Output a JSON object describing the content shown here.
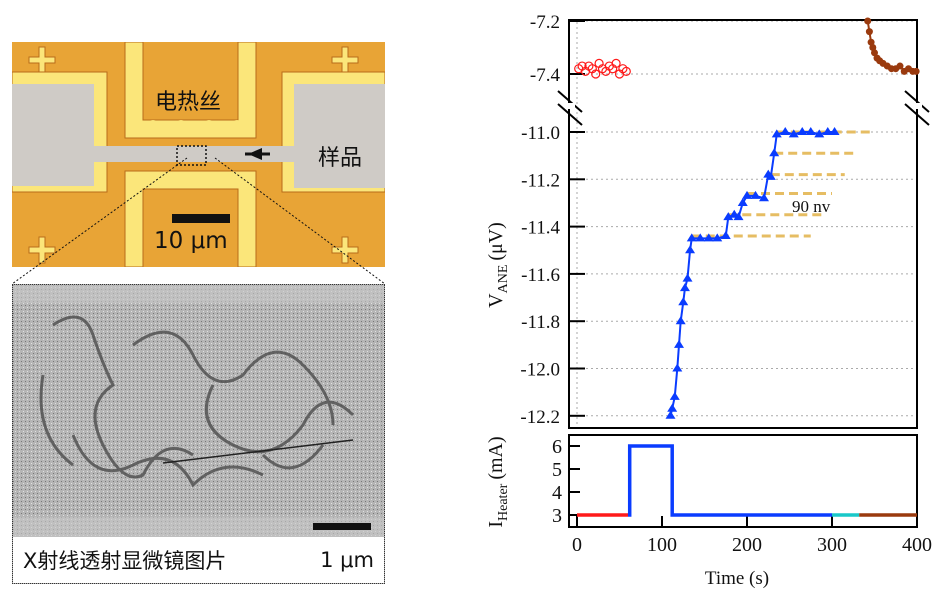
{
  "figure": {
    "optical_image": {
      "heater_label": "电热丝",
      "sample_label": "样品",
      "scale_label": "10 μm"
    },
    "xray_image": {
      "caption": "X射线透射显微镜图片",
      "scale_label": "1 μm"
    }
  },
  "chart_data": [
    {
      "type": "scatter",
      "ylabel": "V",
      "ylabel_sub": "ANE",
      "ylabel_unit": "(μV)",
      "xlim": [
        0,
        400
      ],
      "ylim_upper": [
        -7.5,
        -7.2
      ],
      "ylim_lower": [
        -12.25,
        -10.9
      ],
      "broken_axis": true,
      "grid": true,
      "yticks_upper": [
        "-7.2",
        "-7.4"
      ],
      "yticks_lower": [
        "-11.0",
        "-11.2",
        "-11.4",
        "-11.6",
        "-11.8",
        "-12.0",
        "-12.2"
      ],
      "annotation": "90 nv",
      "series": [
        {
          "marker": "open-circle",
          "color": "#ff1a1a",
          "x": [
            2,
            6,
            10,
            14,
            18,
            22,
            26,
            30,
            34,
            38,
            42,
            46,
            50,
            54,
            58
          ],
          "y": [
            -7.38,
            -7.37,
            -7.39,
            -7.37,
            -7.38,
            -7.4,
            -7.36,
            -7.38,
            -7.39,
            -7.37,
            -7.38,
            -7.36,
            -7.4,
            -7.38,
            -7.39
          ]
        },
        {
          "marker": "triangle",
          "color": "#0a3cff",
          "x": [
            110,
            112,
            115,
            118,
            120,
            122,
            125,
            127,
            130,
            133,
            135,
            145,
            155,
            165,
            175,
            178,
            185,
            190,
            195,
            200,
            210,
            220,
            225,
            228,
            232,
            235,
            245,
            255,
            265,
            275,
            285,
            295,
            303
          ],
          "y": [
            -12.2,
            -12.17,
            -12.12,
            -12.0,
            -11.9,
            -11.8,
            -11.72,
            -11.66,
            -11.62,
            -11.5,
            -11.45,
            -11.45,
            -11.45,
            -11.45,
            -11.44,
            -11.36,
            -11.35,
            -11.36,
            -11.3,
            -11.27,
            -11.27,
            -11.28,
            -11.18,
            -11.19,
            -11.09,
            -11.01,
            -11.0,
            -11.01,
            -11.0,
            -11.0,
            -11.01,
            -11.0,
            -11.0
          ]
        },
        {
          "marker": "filled-circle",
          "color": "#9a3a0e",
          "x": [
            342,
            344,
            346,
            348,
            350,
            353,
            356,
            360,
            365,
            370,
            375,
            380,
            385,
            390,
            395,
            399
          ],
          "y": [
            -7.2,
            -7.24,
            -7.28,
            -7.3,
            -7.32,
            -7.34,
            -7.35,
            -7.36,
            -7.37,
            -7.38,
            -7.38,
            -7.37,
            -7.39,
            -7.38,
            -7.39,
            -7.39
          ]
        }
      ],
      "reference_levels": {
        "color": "#e6bd63",
        "levels": [
          {
            "y": -11.0,
            "x": [
              235,
              345
            ]
          },
          {
            "y": -11.09,
            "x": [
              232,
              330
            ]
          },
          {
            "y": -11.18,
            "x": [
              228,
              315
            ]
          },
          {
            "y": -11.26,
            "x": [
              200,
              300
            ]
          },
          {
            "y": -11.35,
            "x": [
              178,
              290
            ]
          },
          {
            "y": -11.44,
            "x": [
              135,
              275
            ]
          }
        ]
      }
    },
    {
      "type": "line",
      "xlabel": "Time (s)",
      "ylabel": "I",
      "ylabel_sub": "Heater",
      "ylabel_unit": "(mA)",
      "xlim": [
        0,
        400
      ],
      "ylim": [
        2.5,
        6.5
      ],
      "xticks": [
        "0",
        "100",
        "200",
        "300",
        "400"
      ],
      "yticks": [
        "3",
        "4",
        "5",
        "6"
      ],
      "segments": [
        {
          "color": "#ff1a1a",
          "x": [
            0,
            60
          ],
          "y": [
            3,
            3
          ]
        },
        {
          "color": "#0a3cff",
          "x": [
            60,
            62,
            62,
            110,
            112,
            112,
            300
          ],
          "y": [
            3,
            3,
            6,
            6,
            6,
            3,
            3
          ]
        },
        {
          "color": "#19c8c8",
          "x": [
            300,
            332
          ],
          "y": [
            3,
            3
          ]
        },
        {
          "color": "#9a3a0e",
          "x": [
            332,
            400
          ],
          "y": [
            3,
            3
          ]
        }
      ]
    }
  ]
}
